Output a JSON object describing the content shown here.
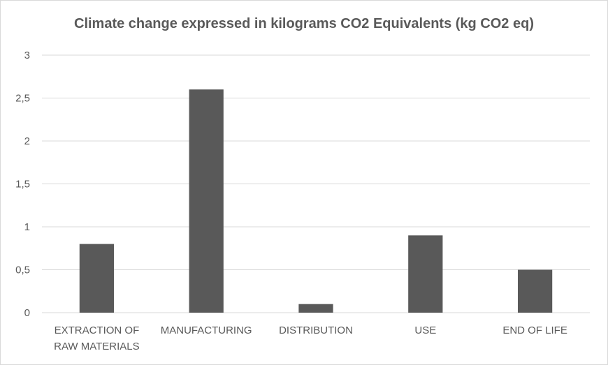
{
  "chart_data": {
    "type": "bar",
    "title": "Climate change expressed in kilograms CO2 Equivalents (kg CO2 eq)",
    "categories": [
      [
        "EXTRACTION OF",
        "RAW MATERIALS"
      ],
      [
        "MANUFACTURING"
      ],
      [
        "DISTRIBUTION"
      ],
      [
        "USE"
      ],
      [
        "END OF LIFE"
      ]
    ],
    "values": [
      0.8,
      2.6,
      0.1,
      0.9,
      0.5
    ],
    "ylim": [
      0,
      3
    ],
    "yticks": [
      0,
      0.5,
      1,
      1.5,
      2,
      2.5,
      3
    ],
    "ytick_labels": [
      "0",
      "0,5",
      "1",
      "1,5",
      "2",
      "2,5",
      "3"
    ],
    "xlabel": "",
    "ylabel": "",
    "grid": true,
    "legend": "none",
    "colors": {
      "bar": "#595959",
      "grid": "#d9d9d9",
      "text": "#595959"
    }
  }
}
